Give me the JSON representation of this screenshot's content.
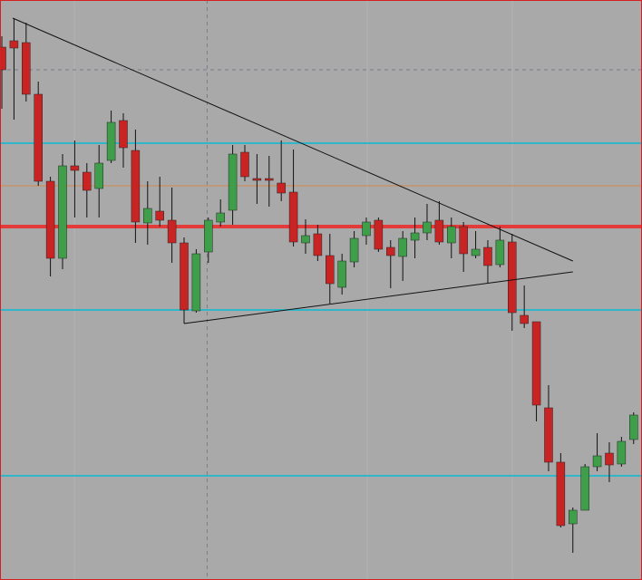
{
  "chart_data": {
    "type": "candlestick",
    "ylim": [
      0,
      640
    ],
    "xlim": [
      -0.15,
      52.69
    ],
    "up_color": "#3f9e4a",
    "down_color": "#c92424",
    "wick_color": "#111111",
    "open": [
      588,
      595,
      593,
      536,
      440,
      355,
      457,
      450,
      432,
      463,
      507,
      474,
      394,
      407,
      397,
      372,
      297,
      362,
      395,
      408,
      472,
      443,
      443,
      438,
      428,
      372,
      382,
      358,
      323,
      351,
      380,
      397,
      367,
      357,
      375,
      383,
      397,
      372,
      390,
      358,
      367,
      348,
      373,
      292,
      285,
      190,
      130,
      62,
      77,
      125,
      140,
      128,
      155
    ],
    "high": [
      600,
      620,
      615,
      550,
      445,
      470,
      485,
      460,
      480,
      518,
      515,
      497,
      440,
      445,
      433,
      378,
      365,
      400,
      420,
      480,
      480,
      470,
      468,
      485,
      475,
      398,
      392,
      382,
      360,
      385,
      400,
      400,
      375,
      385,
      400,
      415,
      418,
      400,
      395,
      385,
      375,
      390,
      382,
      325,
      285,
      215,
      140,
      80,
      128,
      162,
      152,
      158,
      185
    ],
    "low": [
      520,
      508,
      528,
      435,
      335,
      343,
      400,
      400,
      400,
      460,
      455,
      372,
      370,
      390,
      350,
      283,
      295,
      350,
      390,
      392,
      440,
      415,
      412,
      418,
      368,
      360,
      352,
      305,
      315,
      345,
      370,
      362,
      322,
      330,
      355,
      375,
      370,
      355,
      340,
      355,
      328,
      345,
      275,
      278,
      175,
      120,
      58,
      30,
      78,
      120,
      108,
      125,
      150
    ],
    "close": [
      563,
      587,
      536,
      440,
      355,
      457,
      452,
      430,
      460,
      505,
      477,
      395,
      410,
      397,
      372,
      298,
      360,
      397,
      405,
      470,
      445,
      441,
      441,
      427,
      373,
      380,
      358,
      327,
      352,
      377,
      395,
      365,
      358,
      377,
      383,
      395,
      373,
      390,
      360,
      365,
      347,
      375,
      295,
      283,
      193,
      130,
      60,
      77,
      125,
      137,
      127,
      153,
      182
    ],
    "levels": [
      {
        "value": 563,
        "color": "#7a7a8a",
        "width": 1,
        "dash": "4 4"
      },
      {
        "value": 482,
        "color": "#2fb6c9",
        "width": 2,
        "dash": "none"
      },
      {
        "value": 435,
        "color": "#d4874a",
        "width": 1,
        "dash": "none"
      },
      {
        "value": 390,
        "color": "#e33a3a",
        "width": 4,
        "dash": "none"
      },
      {
        "value": 298,
        "color": "#2fb6c9",
        "width": 2,
        "dash": "none"
      },
      {
        "value": 115,
        "color": "#2fb6c9",
        "width": 2,
        "dash": "none"
      }
    ],
    "vertical_line": 16.9,
    "trendlines": [
      {
        "x": [
          0.9,
          47.0
        ],
        "y": [
          620,
          352
        ]
      },
      {
        "x": [
          15.0,
          47.0
        ],
        "y": [
          283,
          340
        ]
      },
      {
        "x": [
          15.0,
          15.0
        ],
        "y": [
          297,
          283
        ]
      }
    ]
  }
}
